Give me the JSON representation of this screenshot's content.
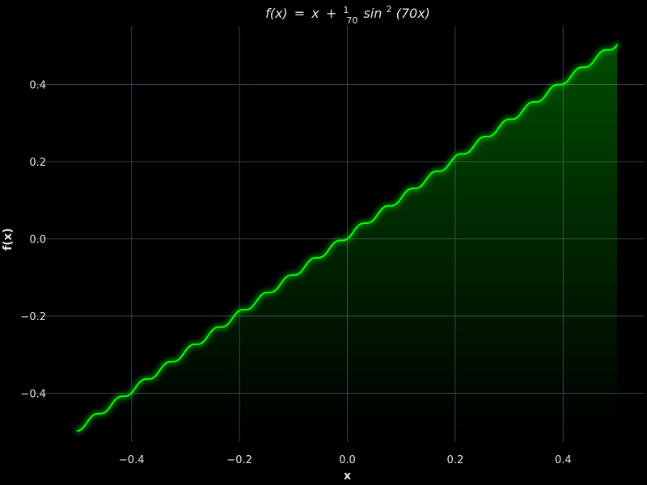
{
  "chart_data": {
    "type": "area",
    "title": {
      "lhs": "f(x)",
      "eq": "=",
      "x1": "x",
      "plus": "+",
      "frac_num": "1",
      "frac_den": "70",
      "func": "sin",
      "exp": "2",
      "arg": "(70x)"
    },
    "xlabel": "x",
    "ylabel": "f(x)",
    "xlim": [
      -0.52,
      0.55
    ],
    "ylim": [
      -0.535,
      0.56
    ],
    "x_ticks": [
      -0.4,
      -0.2,
      0.0,
      0.2,
      0.4
    ],
    "x_tick_labels": [
      "−0.4",
      "−0.2",
      "0.0",
      "0.2",
      "0.4"
    ],
    "y_ticks": [
      -0.4,
      -0.2,
      0.0,
      0.2,
      0.4
    ],
    "y_tick_labels": [
      "−0.4",
      "−0.2",
      "0.0",
      "0.2",
      "0.4"
    ],
    "grid": true,
    "x_range": [
      -0.5,
      0.5
    ],
    "samples": 1000,
    "formula": "x + (1/70) * sin(70x)^2",
    "colors": {
      "background": "#000000",
      "line": "#00ff00",
      "glow": "#00ff00",
      "fill": "#00ff00",
      "grid": "#3a3a55",
      "text": "#e6e6e6"
    }
  }
}
